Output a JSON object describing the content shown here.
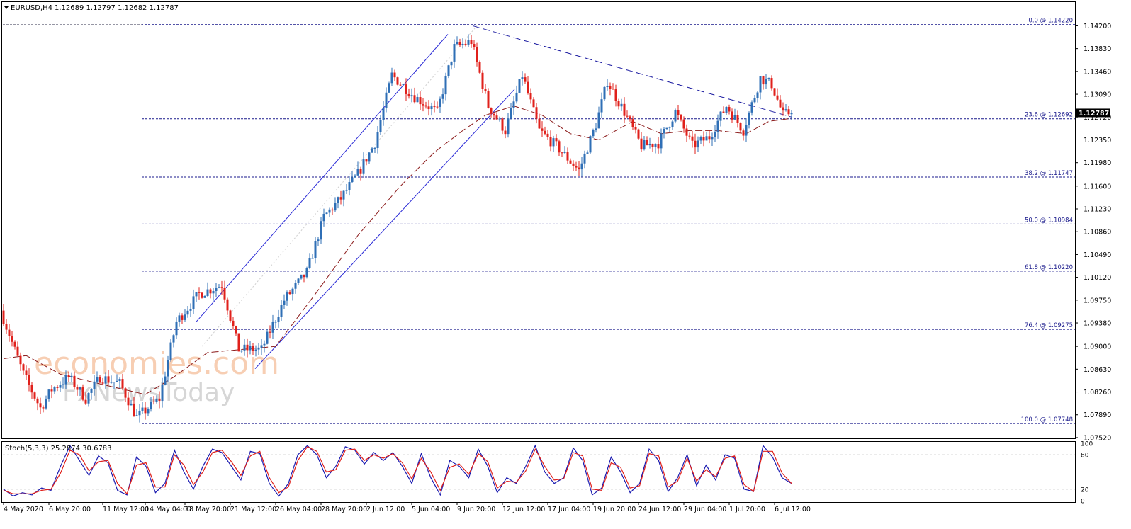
{
  "header": {
    "symbol_label": "EURUSD,H4",
    "ohlc": "1.12689 1.12797 1.12682 1.12787"
  },
  "watermark": {
    "line1": "economies.com",
    "line2": "FxNewsToday"
  },
  "colors": {
    "background": "#ffffff",
    "bull": "#2f6fb6",
    "bear": "#e0201b",
    "ma": "#8b1a1a",
    "channel": "#2a2ad6",
    "trendline": "#1a1aa0",
    "fib": "#1a1a8c",
    "stoch_main": "#1a1ab0",
    "stoch_signal": "#e0201b",
    "bid_line": "#a9d6e5",
    "price_tag_bg": "#000000",
    "grid": "#c0c0c0"
  },
  "chart_data": [
    {
      "type": "candlestick",
      "title": "EURUSD,H4",
      "current_price": "1.12787",
      "ylim": [
        1.0752,
        1.143
      ],
      "y_ticks": [
        "1.14200",
        "1.13830",
        "1.13460",
        "1.13090",
        "1.12720",
        "1.12350",
        "1.11980",
        "1.11600",
        "1.11230",
        "1.10860",
        "1.10490",
        "1.10120",
        "1.09750",
        "1.09380",
        "1.09000",
        "1.08630",
        "1.08260",
        "1.07890",
        "1.07520"
      ],
      "x_ticks": [
        "4 May 2020",
        "6 May 20:00",
        "11 May 12:00",
        "14 May 04:00",
        "18 May 20:00",
        "21 May 12:00",
        "26 May 04:00",
        "28 May 20:00",
        "2 Jun 12:00",
        "5 Jun 04:00",
        "9 Jun 20:00",
        "12 Jun 12:00",
        "17 Jun 04:00",
        "19 Jun 20:00",
        "24 Jun 12:00",
        "29 Jun 04:00",
        "1 Jul 20:00",
        "6 Jul 12:00"
      ],
      "price_path": [
        {
          "bar": 0,
          "price": 1.0958
        },
        {
          "bar": 8,
          "price": 1.0855
        },
        {
          "bar": 14,
          "price": 1.08
        },
        {
          "bar": 18,
          "price": 1.083
        },
        {
          "bar": 24,
          "price": 1.085
        },
        {
          "bar": 30,
          "price": 1.0815
        },
        {
          "bar": 35,
          "price": 1.085
        },
        {
          "bar": 42,
          "price": 1.084
        },
        {
          "bar": 48,
          "price": 1.0785
        },
        {
          "bar": 56,
          "price": 1.0815
        },
        {
          "bar": 62,
          "price": 1.094
        },
        {
          "bar": 70,
          "price": 1.0985
        },
        {
          "bar": 78,
          "price": 1.1
        },
        {
          "bar": 84,
          "price": 1.0895
        },
        {
          "bar": 92,
          "price": 1.0895
        },
        {
          "bar": 100,
          "price": 1.0975
        },
        {
          "bar": 108,
          "price": 1.102
        },
        {
          "bar": 114,
          "price": 1.111
        },
        {
          "bar": 120,
          "price": 1.114
        },
        {
          "bar": 126,
          "price": 1.118
        },
        {
          "bar": 132,
          "price": 1.123
        },
        {
          "bar": 138,
          "price": 1.134
        },
        {
          "bar": 146,
          "price": 1.1305
        },
        {
          "bar": 154,
          "price": 1.128
        },
        {
          "bar": 160,
          "price": 1.1385
        },
        {
          "bar": 166,
          "price": 1.1395
        },
        {
          "bar": 172,
          "price": 1.129
        },
        {
          "bar": 178,
          "price": 1.125
        },
        {
          "bar": 184,
          "price": 1.134
        },
        {
          "bar": 190,
          "price": 1.125
        },
        {
          "bar": 196,
          "price": 1.1225
        },
        {
          "bar": 204,
          "price": 1.1185
        },
        {
          "bar": 210,
          "price": 1.126
        },
        {
          "bar": 214,
          "price": 1.133
        },
        {
          "bar": 220,
          "price": 1.128
        },
        {
          "bar": 226,
          "price": 1.1225
        },
        {
          "bar": 232,
          "price": 1.123
        },
        {
          "bar": 238,
          "price": 1.128
        },
        {
          "bar": 244,
          "price": 1.1225
        },
        {
          "bar": 250,
          "price": 1.124
        },
        {
          "bar": 256,
          "price": 1.129
        },
        {
          "bar": 262,
          "price": 1.125
        },
        {
          "bar": 268,
          "price": 1.1335
        },
        {
          "bar": 272,
          "price": 1.1325
        },
        {
          "bar": 276,
          "price": 1.1275
        },
        {
          "bar": 278,
          "price": 1.12787
        }
      ],
      "ma_path": [
        {
          "bar": 0,
          "price": 1.088
        },
        {
          "bar": 8,
          "price": 1.0885
        },
        {
          "bar": 20,
          "price": 1.0855
        },
        {
          "bar": 35,
          "price": 1.0838
        },
        {
          "bar": 50,
          "price": 1.0822
        },
        {
          "bar": 60,
          "price": 1.085
        },
        {
          "bar": 72,
          "price": 1.089
        },
        {
          "bar": 84,
          "price": 1.0895
        },
        {
          "bar": 96,
          "price": 1.09
        },
        {
          "bar": 110,
          "price": 1.0985
        },
        {
          "bar": 125,
          "price": 1.108
        },
        {
          "bar": 140,
          "price": 1.116
        },
        {
          "bar": 152,
          "price": 1.1215
        },
        {
          "bar": 162,
          "price": 1.125
        },
        {
          "bar": 170,
          "price": 1.1275
        },
        {
          "bar": 180,
          "price": 1.129
        },
        {
          "bar": 190,
          "price": 1.1275
        },
        {
          "bar": 200,
          "price": 1.1245
        },
        {
          "bar": 210,
          "price": 1.1235
        },
        {
          "bar": 222,
          "price": 1.1265
        },
        {
          "bar": 232,
          "price": 1.1245
        },
        {
          "bar": 242,
          "price": 1.125
        },
        {
          "bar": 252,
          "price": 1.125
        },
        {
          "bar": 262,
          "price": 1.1245
        },
        {
          "bar": 270,
          "price": 1.1265
        },
        {
          "bar": 278,
          "price": 1.127
        }
      ],
      "fibonacci": [
        {
          "label": "0.0 @ 1.14220",
          "price": 1.1422
        },
        {
          "label": "23.6 @ 1.12692",
          "price": 1.12692
        },
        {
          "label": "38.2 @ 1.11747",
          "price": 1.11747
        },
        {
          "label": "50.0 @ 1.10984",
          "price": 1.10984
        },
        {
          "label": "61.8 @ 1.10220",
          "price": 1.1022
        },
        {
          "label": "76.4 @ 1.09275",
          "price": 1.09275
        },
        {
          "label": "100.0 @ 1.07748",
          "price": 1.07748
        }
      ],
      "channel": {
        "upper": [
          {
            "bar": 68,
            "price": 1.094
          },
          {
            "bar": 167,
            "price": 1.146
          }
        ],
        "lower": [
          {
            "bar": 90,
            "price": 1.087
          },
          {
            "bar": 194,
            "price": 1.1385
          }
        ]
      },
      "trendline": [
        {
          "bar": 167,
          "price": 1.142
        },
        {
          "bar": 278,
          "price": 1.1272
        }
      ]
    },
    {
      "type": "line",
      "title": "Stoch(5,3,3) 25.2874 30.6783",
      "ylim": [
        0,
        100
      ],
      "y_ticks": [
        "100",
        "80",
        "20",
        "0"
      ],
      "levels": [
        80,
        20
      ],
      "series": [
        {
          "values": [
            20,
            8,
            14,
            10,
            22,
            18,
            60,
            96,
            70,
            44,
            78,
            66,
            18,
            10,
            76,
            60,
            14,
            30,
            88,
            50,
            20,
            60,
            90,
            84,
            60,
            36,
            86,
            82,
            30,
            8,
            30,
            80,
            96,
            80,
            40,
            60,
            94,
            88,
            64,
            84,
            70,
            84,
            60,
            30,
            82,
            40,
            10,
            70,
            60,
            40,
            90,
            60,
            14,
            40,
            30,
            60,
            96,
            50,
            30,
            40,
            92,
            70,
            10,
            22,
            76,
            50,
            14,
            30,
            90,
            70,
            16,
            40,
            80,
            26,
            62,
            36,
            80,
            74,
            20,
            16,
            96,
            76,
            40,
            30
          ]
        },
        {
          "values": [
            18,
            12,
            12,
            12,
            18,
            20,
            48,
            88,
            80,
            52,
            68,
            70,
            30,
            12,
            62,
            66,
            24,
            24,
            80,
            62,
            28,
            50,
            84,
            88,
            68,
            44,
            78,
            86,
            40,
            14,
            24,
            70,
            94,
            86,
            50,
            54,
            88,
            90,
            70,
            80,
            74,
            82,
            66,
            38,
            74,
            50,
            18,
            58,
            64,
            46,
            82,
            68,
            22,
            34,
            32,
            52,
            90,
            60,
            36,
            38,
            84,
            78,
            20,
            18,
            66,
            58,
            22,
            26,
            82,
            78,
            24,
            34,
            74,
            34,
            54,
            42,
            74,
            78,
            28,
            16,
            86,
            86,
            48,
            30
          ]
        }
      ]
    }
  ]
}
